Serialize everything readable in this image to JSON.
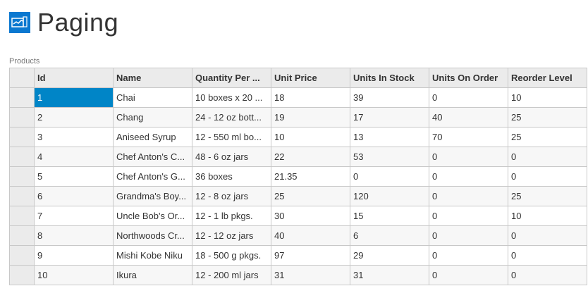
{
  "page": {
    "title": "Paging",
    "icon": "chart-icon",
    "accent": "#0b78d0"
  },
  "grid": {
    "caption": "Products",
    "selected_color": "#0085c7",
    "columns": [
      "Id",
      "Name",
      "Quantity Per ...",
      "Unit Price",
      "Units In Stock",
      "Units On Order",
      "Reorder Level"
    ],
    "rows": [
      [
        "1",
        "Chai",
        "10 boxes x 20 ...",
        "18",
        "39",
        "0",
        "10"
      ],
      [
        "2",
        "Chang",
        "24 - 12 oz bott...",
        "19",
        "17",
        "40",
        "25"
      ],
      [
        "3",
        "Aniseed Syrup",
        "12 - 550 ml bo...",
        "10",
        "13",
        "70",
        "25"
      ],
      [
        "4",
        "Chef Anton's C...",
        "48 - 6 oz jars",
        "22",
        "53",
        "0",
        "0"
      ],
      [
        "5",
        "Chef Anton's G...",
        "36 boxes",
        "21.35",
        "0",
        "0",
        "0"
      ],
      [
        "6",
        "Grandma's Boy...",
        "12 - 8 oz jars",
        "25",
        "120",
        "0",
        "25"
      ],
      [
        "7",
        "Uncle Bob's Or...",
        "12 - 1 lb pkgs.",
        "30",
        "15",
        "0",
        "10"
      ],
      [
        "8",
        "Northwoods Cr...",
        "12 - 12 oz jars",
        "40",
        "6",
        "0",
        "0"
      ],
      [
        "9",
        "Mishi Kobe Niku",
        "18 - 500 g pkgs.",
        "97",
        "29",
        "0",
        "0"
      ],
      [
        "10",
        "Ikura",
        "12 - 200 ml jars",
        "31",
        "31",
        "0",
        "0"
      ]
    ]
  }
}
